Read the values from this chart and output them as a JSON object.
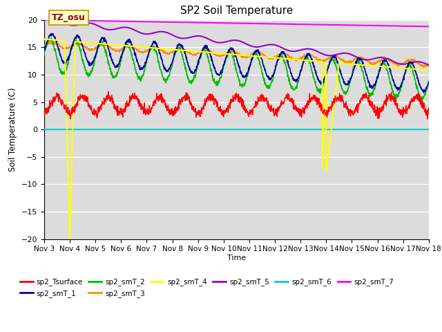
{
  "title": "SP2 Soil Temperature",
  "xlabel": "Time",
  "ylabel": "Soil Temperature (C)",
  "ylim": [
    -20,
    20
  ],
  "xlim": [
    0,
    15
  ],
  "x_tick_labels": [
    "Nov 3",
    "Nov 4",
    "Nov 5",
    "Nov 6",
    "Nov 7",
    "Nov 8",
    "Nov 9",
    "Nov 10",
    "Nov 11",
    "Nov 12",
    "Nov 13",
    "Nov 14",
    "Nov 15",
    "Nov 16",
    "Nov 17",
    "Nov 18"
  ],
  "yticks": [
    -20,
    -15,
    -10,
    -5,
    0,
    5,
    10,
    15,
    20
  ],
  "bg_color": "#dcdcdc",
  "annotation_text": "TZ_osu",
  "annotation_color": "#8b0000",
  "annotation_bg": "#ffffcc",
  "series_colors": {
    "sp2_Tsurface": "#ff0000",
    "sp2_smT_1": "#0000aa",
    "sp2_smT_2": "#00bb00",
    "sp2_smT_3": "#ff8c00",
    "sp2_smT_4": "#ffff00",
    "sp2_smT_5": "#9900cc",
    "sp2_smT_6": "#00cccc",
    "sp2_smT_7": "#ff00ff"
  }
}
